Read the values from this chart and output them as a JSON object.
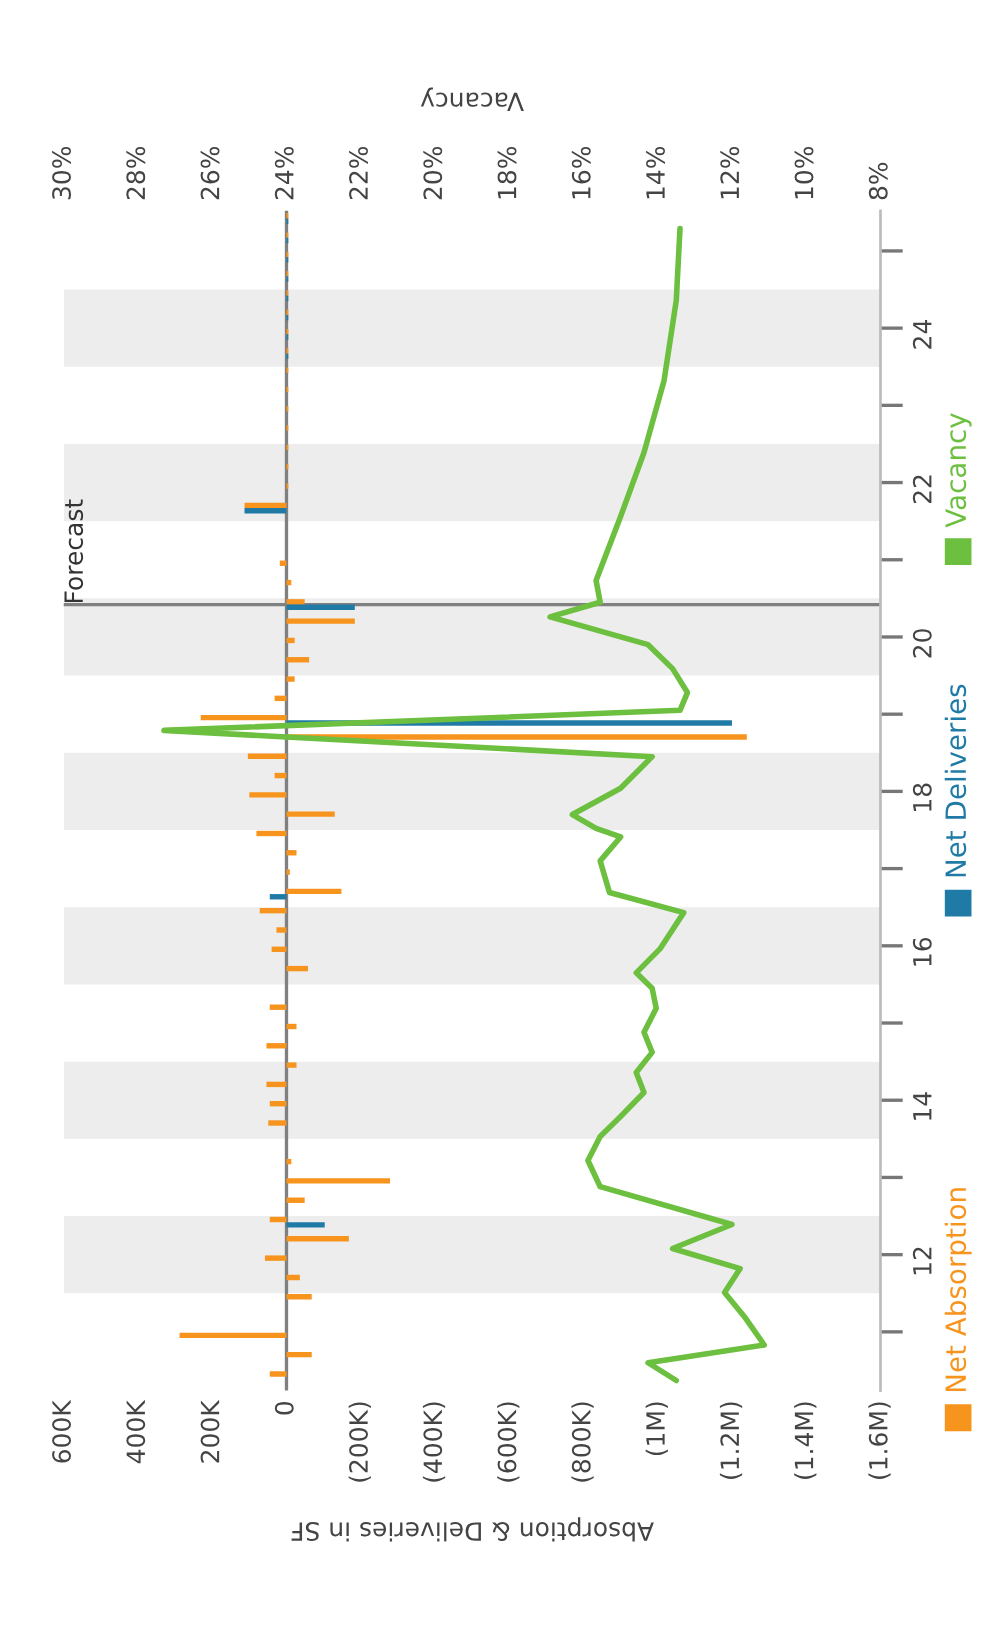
{
  "chart_data": {
    "type": "bar",
    "orientation": "horizontal",
    "xlabel": "Absorption & Deliveries in SF",
    "x2label": "Vacancy",
    "x": [
      10.42,
      10.67,
      10.92,
      11.17,
      11.42,
      11.67,
      11.92,
      12.17,
      12.42,
      12.67,
      12.92,
      13.17,
      13.42,
      13.67,
      13.92,
      14.17,
      14.42,
      14.67,
      14.92,
      15.17,
      15.42,
      15.67,
      15.92,
      16.17,
      16.42,
      16.67,
      16.92,
      17.17,
      17.42,
      17.67,
      17.92,
      18.17,
      18.42,
      18.67,
      18.92,
      19.17,
      19.42,
      19.67,
      19.92,
      20.17,
      20.42,
      20.67,
      20.92,
      21.17,
      21.42,
      21.67,
      21.92,
      22.17,
      22.42,
      22.67,
      22.92,
      23.17,
      23.42,
      23.67,
      23.92,
      24.17,
      24.42,
      24.67,
      24.92,
      25.17,
      25.42
    ],
    "series": [
      {
        "name": "Net Absorption",
        "color": "#f7941d",
        "values": [
          45000,
          -68000,
          288000,
          0,
          -68000,
          -36000,
          58000,
          -168000,
          45000,
          -49000,
          -279000,
          -13000,
          0,
          49000,
          45000,
          54000,
          -27000,
          54000,
          -27000,
          45000,
          0,
          -58000,
          40000,
          27000,
          72000,
          -148000,
          -9000,
          -27000,
          81000,
          -130000,
          100000,
          32000,
          104000,
          -1240000,
          231000,
          32000,
          -22000,
          -61000,
          -22000,
          -184000,
          -49000,
          -13000,
          18000,
          0,
          0,
          113000,
          -5000,
          -5000,
          -5000,
          -5000,
          -5000,
          -5000,
          -5000,
          -5000,
          -5000,
          -5000,
          -5000,
          -5000,
          -5000,
          -5000,
          -5000
        ]
      },
      {
        "name": "Net Deliveries",
        "color": "#1f7ba6",
        "values": [
          0,
          0,
          0,
          0,
          0,
          0,
          0,
          0,
          -103000,
          0,
          0,
          0,
          0,
          0,
          0,
          0,
          0,
          0,
          0,
          0,
          0,
          0,
          0,
          0,
          0,
          45000,
          0,
          0,
          0,
          0,
          0,
          0,
          0,
          0,
          -1200000,
          0,
          0,
          0,
          0,
          0,
          -184000,
          0,
          0,
          0,
          0,
          113000,
          0,
          0,
          0,
          0,
          0,
          0,
          0,
          -5000,
          -5000,
          -5000,
          -5000,
          -5000,
          -5000,
          -5000,
          -5000
        ]
      },
      {
        "name": "Vacancy",
        "type": "line",
        "axis": "x2",
        "color": "#6cbf3f",
        "x": [
          10.37,
          10.6,
          10.83,
          11.2,
          11.51,
          11.82,
          12.08,
          12.39,
          12.88,
          13.22,
          13.53,
          13.79,
          14.1,
          14.36,
          14.62,
          14.88,
          15.19,
          15.45,
          15.65,
          15.96,
          16.43,
          16.69,
          17.1,
          17.41,
          17.52,
          17.7,
          18.04,
          18.45,
          18.79,
          19.05,
          19.28,
          19.59,
          19.9,
          20.26,
          20.45,
          20.73,
          21.56,
          22.39,
          23.32,
          24.36,
          25.29
        ],
        "values": [
          13.5,
          14.26,
          11.13,
          11.67,
          12.2,
          11.78,
          13.6,
          12.0,
          15.55,
          15.88,
          15.55,
          15.0,
          14.37,
          14.58,
          14.15,
          14.37,
          14.04,
          14.15,
          14.58,
          13.94,
          13.3,
          15.3,
          15.55,
          15.0,
          15.66,
          16.3,
          15.0,
          14.15,
          27.3,
          13.4,
          13.2,
          13.6,
          14.26,
          16.9,
          15.55,
          15.66,
          15.0,
          14.37,
          13.83,
          13.5,
          13.4
        ]
      }
    ],
    "xlim": [
      600000,
      -1600000
    ],
    "xticks": [
      {
        "value": 600000,
        "label": "600K"
      },
      {
        "value": 400000,
        "label": "400K"
      },
      {
        "value": 200000,
        "label": "200K"
      },
      0,
      {
        "value": -200000,
        "label": "(200K)"
      },
      {
        "value": -400000,
        "label": "(400K)"
      },
      {
        "value": -600000,
        "label": "(600K)"
      },
      {
        "value": -800000,
        "label": "(800K)"
      },
      {
        "value": -1000000,
        "label": "(1M)"
      },
      {
        "value": -1200000,
        "label": "(1.2M)"
      },
      {
        "value": -1400000,
        "label": "(1.4M)"
      },
      {
        "value": -1600000,
        "label": "(1.6M)"
      }
    ],
    "x2lim": [
      30,
      8
    ],
    "x2ticks": [
      {
        "value": 30,
        "label": "30%"
      },
      {
        "value": 28,
        "label": "28%"
      },
      {
        "value": 26,
        "label": "26%"
      },
      {
        "value": 24,
        "label": "24%"
      },
      {
        "value": 22,
        "label": "22%"
      },
      {
        "value": 20,
        "label": "20%"
      },
      {
        "value": 18,
        "label": "18%"
      },
      {
        "value": 16,
        "label": "16%"
      },
      {
        "value": 14,
        "label": "14%"
      },
      {
        "value": 12,
        "label": "12%"
      },
      {
        "value": 10,
        "label": "10%"
      },
      {
        "value": 8,
        "label": "8%"
      }
    ],
    "ylim": [
      10.24,
      25.52
    ],
    "yticks": [
      {
        "value": 11,
        "label": null
      },
      12,
      {
        "value": 13,
        "label": null
      },
      14,
      {
        "value": 15,
        "label": null
      },
      16,
      {
        "value": 17,
        "label": null
      },
      18,
      {
        "value": 19,
        "label": null
      },
      20,
      {
        "value": 21,
        "label": null
      },
      22,
      {
        "value": 23,
        "label": null
      },
      24,
      {
        "value": 25,
        "label": null
      }
    ],
    "ref_lines": [
      {
        "axis": "y",
        "value": 20.42,
        "label": "Forecast",
        "color": "#808080"
      },
      {
        "axis": "x",
        "value": 0,
        "color": "#808080"
      }
    ],
    "bands": [
      {
        "axis": "y",
        "from": 11.5,
        "to": 12.5,
        "color": "#ededed"
      },
      {
        "axis": "y",
        "from": 13.5,
        "to": 14.5,
        "color": "#ededed"
      },
      {
        "axis": "y",
        "from": 15.5,
        "to": 16.5,
        "color": "#ededed"
      },
      {
        "axis": "y",
        "from": 17.5,
        "to": 18.5,
        "color": "#ededed"
      },
      {
        "axis": "y",
        "from": 19.5,
        "to": 20.5,
        "color": "#ededed"
      },
      {
        "axis": "y",
        "from": 21.5,
        "to": 22.5,
        "color": "#ededed"
      },
      {
        "axis": "y",
        "from": 23.5,
        "to": 24.5,
        "color": "#ededed"
      }
    ],
    "legend": "right"
  }
}
